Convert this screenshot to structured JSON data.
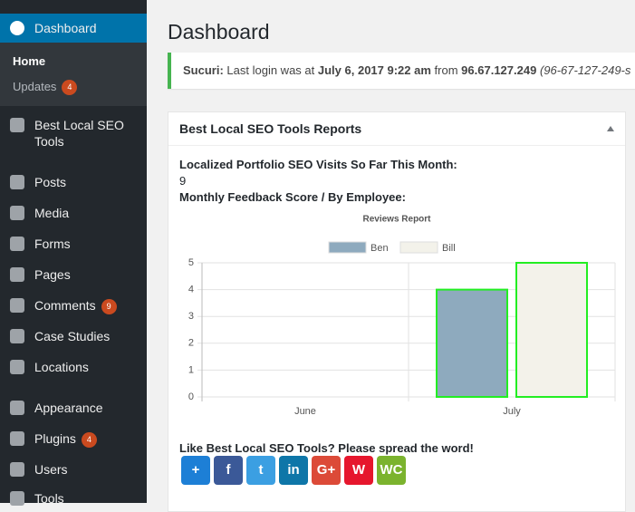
{
  "sidebar": {
    "items": [
      {
        "label": "Dashboard"
      },
      {
        "label": "Best Local SEO Tools"
      },
      {
        "label": "Posts"
      },
      {
        "label": "Media"
      },
      {
        "label": "Forms"
      },
      {
        "label": "Pages"
      },
      {
        "label": "Comments",
        "badge": 9
      },
      {
        "label": "Case Studies"
      },
      {
        "label": "Locations"
      },
      {
        "label": "Appearance"
      },
      {
        "label": "Plugins",
        "badge": 4
      },
      {
        "label": "Users"
      },
      {
        "label": "Tools"
      }
    ],
    "submenu": [
      {
        "label": "Home"
      },
      {
        "label": "Updates",
        "badge": 4
      }
    ]
  },
  "header": {
    "title": "Dashboard"
  },
  "notice": {
    "source": "Sucuri:",
    "text1": "Last login was at",
    "date": "July 6, 2017 9:22 am",
    "text2": "from",
    "ip": "96.67.127.249",
    "host": "(96-67-127-249-s"
  },
  "widget": {
    "title": "Best Local SEO Tools Reports",
    "visits_label": "Localized Portfolio SEO Visits So Far This Month:",
    "visits": 9,
    "feedback_label": "Monthly Feedback Score / By Employee:",
    "share_text": "Like Best Local SEO Tools? Please spread the word!",
    "share_buttons": [
      {
        "label": "+",
        "color": "#1d7fd6"
      },
      {
        "label": "f",
        "color": "#3b5998"
      },
      {
        "label": "t",
        "color": "#3b9fe2"
      },
      {
        "label": "in",
        "color": "#0e76a8"
      },
      {
        "label": "G+",
        "color": "#dc4a38"
      },
      {
        "label": "W",
        "color": "#e6162d"
      },
      {
        "label": "WC",
        "color": "#7bb32e"
      }
    ]
  },
  "chart_data": {
    "type": "bar",
    "title": "Reviews Report",
    "categories": [
      "June",
      "July"
    ],
    "series": [
      {
        "name": "Ben",
        "color": "#8eaabe",
        "values": [
          0,
          4
        ]
      },
      {
        "name": "Bill",
        "color": "#f3f2ea",
        "values": [
          0,
          5
        ]
      }
    ],
    "border_color": "#22ee22",
    "ylim": [
      0,
      5
    ],
    "yticks": [
      0,
      1,
      2,
      3,
      4,
      5
    ],
    "grid": true,
    "legend": "top"
  }
}
